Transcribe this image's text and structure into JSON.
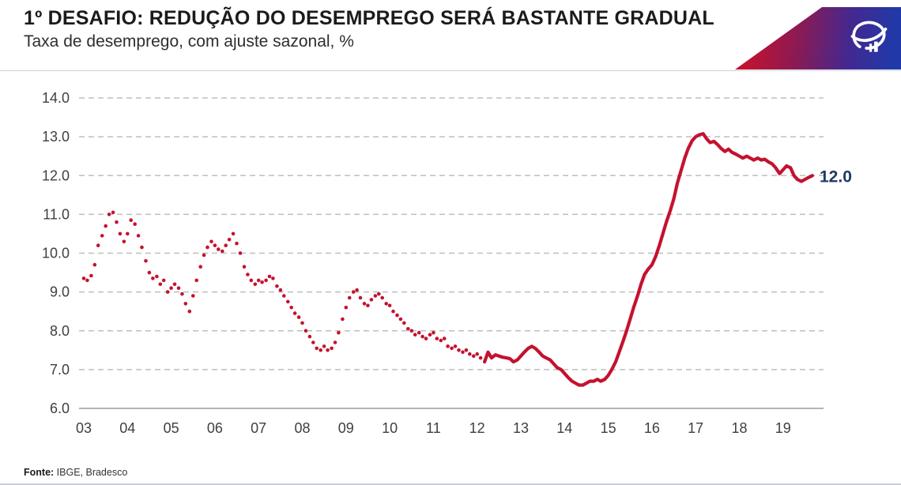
{
  "header": {
    "title": "1º DESAFIO: REDUÇÃO DO DESEMPREGO SERÁ BASTANTE GRADUAL",
    "subtitle": "Taxa de desemprego, com ajuste sazonal, %",
    "brand": {
      "logo_icon": "bradesco-logo",
      "wedge_colors": [
        "#c11330",
        "#44288f",
        "#2139a8"
      ]
    }
  },
  "footer": {
    "source_label": "Fonte:",
    "source_text": " IBGE, Bradesco"
  },
  "chart_data": {
    "type": "line",
    "title": "Taxa de desemprego, com ajuste sazonal, %",
    "xlabel": "",
    "ylabel": "",
    "ylim": [
      6.0,
      14.0
    ],
    "yticks": [
      6,
      7,
      8,
      9,
      10,
      11,
      12,
      13,
      14
    ],
    "ytick_labels": [
      "6.0",
      "7.0",
      "8.0",
      "9.0",
      "10.0",
      "11.0",
      "12.0",
      "13.0",
      "14.0"
    ],
    "xticks": [
      2003,
      2004,
      2005,
      2006,
      2007,
      2008,
      2009,
      2010,
      2011,
      2012,
      2013,
      2014,
      2015,
      2016,
      2017,
      2018,
      2019
    ],
    "xtick_labels": [
      "03",
      "04",
      "05",
      "06",
      "07",
      "08",
      "09",
      "10",
      "11",
      "12",
      "13",
      "14",
      "15",
      "16",
      "17",
      "18",
      "19"
    ],
    "grid": "horizontal-dashed, bottom axis solid",
    "legend": "none",
    "line_color": "#c4122e",
    "grid_color": "#bfbfbf",
    "axis_color": "#9b9b9b",
    "end_label": "12.0",
    "end_label_color": "#1f3864",
    "series": [
      {
        "style": "dotted",
        "points": [
          [
            2003.0,
            9.35
          ],
          [
            2003.08,
            9.3
          ],
          [
            2003.17,
            9.42
          ],
          [
            2003.25,
            9.7
          ],
          [
            2003.33,
            10.2
          ],
          [
            2003.42,
            10.45
          ],
          [
            2003.5,
            10.7
          ],
          [
            2003.58,
            11.0
          ],
          [
            2003.67,
            11.05
          ],
          [
            2003.75,
            10.8
          ],
          [
            2003.83,
            10.5
          ],
          [
            2003.92,
            10.3
          ],
          [
            2004.0,
            10.5
          ],
          [
            2004.08,
            10.85
          ],
          [
            2004.17,
            10.75
          ],
          [
            2004.25,
            10.45
          ],
          [
            2004.33,
            10.15
          ],
          [
            2004.42,
            9.8
          ],
          [
            2004.5,
            9.5
          ],
          [
            2004.58,
            9.35
          ],
          [
            2004.67,
            9.4
          ],
          [
            2004.75,
            9.2
          ],
          [
            2004.83,
            9.3
          ],
          [
            2004.92,
            9.0
          ],
          [
            2005.0,
            9.1
          ],
          [
            2005.08,
            9.2
          ],
          [
            2005.17,
            9.1
          ],
          [
            2005.25,
            8.95
          ],
          [
            2005.33,
            8.7
          ],
          [
            2005.42,
            8.5
          ],
          [
            2005.5,
            8.9
          ],
          [
            2005.58,
            9.3
          ],
          [
            2005.67,
            9.65
          ],
          [
            2005.75,
            9.95
          ],
          [
            2005.83,
            10.15
          ],
          [
            2005.92,
            10.3
          ],
          [
            2006.0,
            10.2
          ],
          [
            2006.08,
            10.1
          ],
          [
            2006.17,
            10.05
          ],
          [
            2006.25,
            10.2
          ],
          [
            2006.33,
            10.35
          ],
          [
            2006.42,
            10.5
          ],
          [
            2006.5,
            10.25
          ],
          [
            2006.58,
            10.0
          ],
          [
            2006.67,
            9.65
          ],
          [
            2006.75,
            9.45
          ],
          [
            2006.83,
            9.3
          ],
          [
            2006.92,
            9.2
          ],
          [
            2007.0,
            9.3
          ],
          [
            2007.08,
            9.25
          ],
          [
            2007.17,
            9.3
          ],
          [
            2007.25,
            9.4
          ],
          [
            2007.33,
            9.35
          ],
          [
            2007.42,
            9.15
          ],
          [
            2007.5,
            9.05
          ],
          [
            2007.58,
            8.9
          ],
          [
            2007.67,
            8.75
          ],
          [
            2007.75,
            8.6
          ],
          [
            2007.83,
            8.45
          ],
          [
            2007.92,
            8.35
          ],
          [
            2008.0,
            8.2
          ],
          [
            2008.08,
            8.0
          ],
          [
            2008.17,
            7.85
          ],
          [
            2008.25,
            7.7
          ],
          [
            2008.33,
            7.55
          ],
          [
            2008.42,
            7.5
          ],
          [
            2008.5,
            7.6
          ],
          [
            2008.58,
            7.5
          ],
          [
            2008.67,
            7.55
          ],
          [
            2008.75,
            7.7
          ],
          [
            2008.83,
            7.95
          ],
          [
            2008.92,
            8.3
          ],
          [
            2009.0,
            8.6
          ],
          [
            2009.08,
            8.85
          ],
          [
            2009.17,
            9.0
          ],
          [
            2009.25,
            9.05
          ],
          [
            2009.33,
            8.85
          ],
          [
            2009.42,
            8.7
          ],
          [
            2009.5,
            8.65
          ],
          [
            2009.58,
            8.8
          ],
          [
            2009.67,
            8.9
          ],
          [
            2009.75,
            8.95
          ],
          [
            2009.83,
            8.85
          ],
          [
            2009.92,
            8.7
          ],
          [
            2010.0,
            8.65
          ],
          [
            2010.08,
            8.5
          ],
          [
            2010.17,
            8.4
          ],
          [
            2010.25,
            8.3
          ],
          [
            2010.33,
            8.2
          ],
          [
            2010.42,
            8.05
          ],
          [
            2010.5,
            8.0
          ],
          [
            2010.58,
            7.9
          ],
          [
            2010.67,
            7.95
          ],
          [
            2010.75,
            7.85
          ],
          [
            2010.83,
            7.8
          ],
          [
            2010.92,
            7.9
          ],
          [
            2011.0,
            7.95
          ],
          [
            2011.08,
            7.8
          ],
          [
            2011.17,
            7.75
          ],
          [
            2011.25,
            7.8
          ],
          [
            2011.33,
            7.6
          ],
          [
            2011.42,
            7.55
          ],
          [
            2011.5,
            7.6
          ],
          [
            2011.58,
            7.5
          ],
          [
            2011.67,
            7.45
          ],
          [
            2011.75,
            7.5
          ],
          [
            2011.83,
            7.4
          ],
          [
            2011.92,
            7.35
          ],
          [
            2012.0,
            7.4
          ],
          [
            2012.08,
            7.3
          ]
        ]
      },
      {
        "style": "solid",
        "points": [
          [
            2012.17,
            7.2
          ],
          [
            2012.25,
            7.45
          ],
          [
            2012.33,
            7.3
          ],
          [
            2012.42,
            7.38
          ],
          [
            2012.5,
            7.35
          ],
          [
            2012.58,
            7.32
          ],
          [
            2012.67,
            7.3
          ],
          [
            2012.75,
            7.28
          ],
          [
            2012.83,
            7.2
          ],
          [
            2012.92,
            7.25
          ],
          [
            2013.0,
            7.35
          ],
          [
            2013.08,
            7.45
          ],
          [
            2013.17,
            7.55
          ],
          [
            2013.25,
            7.6
          ],
          [
            2013.33,
            7.55
          ],
          [
            2013.42,
            7.45
          ],
          [
            2013.5,
            7.35
          ],
          [
            2013.58,
            7.3
          ],
          [
            2013.67,
            7.25
          ],
          [
            2013.75,
            7.15
          ],
          [
            2013.83,
            7.05
          ],
          [
            2013.92,
            7.0
          ],
          [
            2014.0,
            6.9
          ],
          [
            2014.08,
            6.8
          ],
          [
            2014.17,
            6.7
          ],
          [
            2014.25,
            6.65
          ],
          [
            2014.33,
            6.6
          ],
          [
            2014.42,
            6.6
          ],
          [
            2014.5,
            6.65
          ],
          [
            2014.58,
            6.7
          ],
          [
            2014.67,
            6.7
          ],
          [
            2014.75,
            6.75
          ],
          [
            2014.83,
            6.7
          ],
          [
            2014.92,
            6.75
          ],
          [
            2015.0,
            6.85
          ],
          [
            2015.08,
            7.0
          ],
          [
            2015.17,
            7.2
          ],
          [
            2015.25,
            7.45
          ],
          [
            2015.33,
            7.7
          ],
          [
            2015.42,
            8.0
          ],
          [
            2015.5,
            8.3
          ],
          [
            2015.58,
            8.6
          ],
          [
            2015.67,
            8.9
          ],
          [
            2015.75,
            9.2
          ],
          [
            2015.83,
            9.45
          ],
          [
            2015.92,
            9.6
          ],
          [
            2016.0,
            9.7
          ],
          [
            2016.08,
            9.9
          ],
          [
            2016.17,
            10.2
          ],
          [
            2016.25,
            10.5
          ],
          [
            2016.33,
            10.8
          ],
          [
            2016.42,
            11.1
          ],
          [
            2016.5,
            11.4
          ],
          [
            2016.58,
            11.8
          ],
          [
            2016.67,
            12.15
          ],
          [
            2016.75,
            12.45
          ],
          [
            2016.83,
            12.7
          ],
          [
            2016.92,
            12.9
          ],
          [
            2017.0,
            13.0
          ],
          [
            2017.08,
            13.05
          ],
          [
            2017.17,
            13.08
          ],
          [
            2017.25,
            12.95
          ],
          [
            2017.33,
            12.85
          ],
          [
            2017.42,
            12.88
          ],
          [
            2017.5,
            12.8
          ],
          [
            2017.58,
            12.7
          ],
          [
            2017.67,
            12.62
          ],
          [
            2017.75,
            12.68
          ],
          [
            2017.83,
            12.6
          ],
          [
            2017.92,
            12.55
          ],
          [
            2018.0,
            12.5
          ],
          [
            2018.08,
            12.45
          ],
          [
            2018.17,
            12.5
          ],
          [
            2018.25,
            12.45
          ],
          [
            2018.33,
            12.4
          ],
          [
            2018.42,
            12.45
          ],
          [
            2018.5,
            12.4
          ],
          [
            2018.58,
            12.42
          ],
          [
            2018.67,
            12.35
          ],
          [
            2018.75,
            12.3
          ],
          [
            2018.83,
            12.2
          ],
          [
            2018.92,
            12.05
          ],
          [
            2019.0,
            12.15
          ],
          [
            2019.08,
            12.25
          ],
          [
            2019.17,
            12.2
          ],
          [
            2019.25,
            12.0
          ],
          [
            2019.33,
            11.9
          ],
          [
            2019.42,
            11.85
          ],
          [
            2019.5,
            11.9
          ],
          [
            2019.58,
            11.95
          ],
          [
            2019.67,
            12.0
          ]
        ]
      }
    ]
  }
}
